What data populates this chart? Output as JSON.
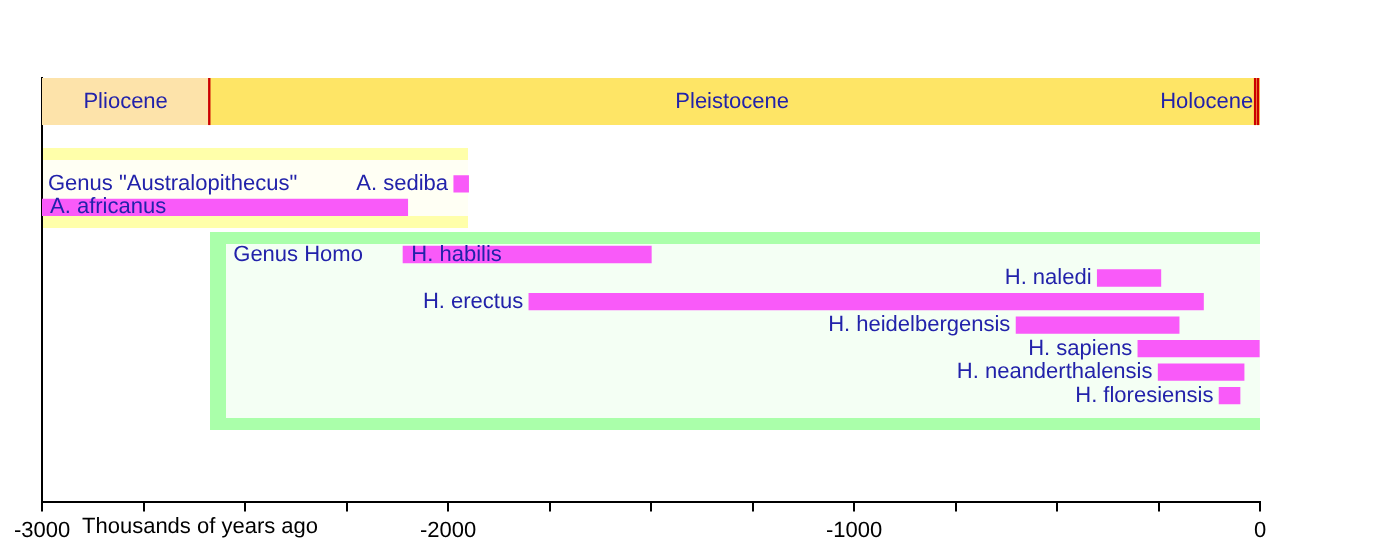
{
  "chart_data": {
    "type": "bar",
    "orientation": "horizontal",
    "xlabel": "Thousands of years ago",
    "categories": [
      null,
      null,
      null,
      null,
      "A. sediba",
      "A. africanus",
      null,
      "H. habilis",
      "H. naledi",
      "H. erectus",
      "H. heidelbergensis",
      "H. sapiens",
      "H. neanderthalensis",
      "H. floresiensis",
      null,
      null,
      null,
      null
    ],
    "series": [
      {
        "color": "#f95af9",
        "values": [
          null,
          null,
          null,
          null,
          35,
          900,
          null,
          null,
          null,
          null,
          null,
          null,
          null,
          null,
          null,
          null,
          null,
          null
        ],
        "base": [
          null,
          null,
          null,
          null,
          -1985,
          -3000,
          null,
          null,
          null,
          null,
          null,
          null,
          null,
          null,
          null,
          null,
          null,
          null
        ]
      },
      {
        "color": "#f95af9",
        "values": [
          null,
          null,
          null,
          null,
          null,
          null,
          null,
          610,
          155,
          1660,
          400,
          300,
          210,
          50,
          null,
          null,
          null,
          null
        ],
        "base": [
          null,
          null,
          null,
          null,
          null,
          null,
          null,
          -2110,
          -400,
          -1800,
          -600,
          -300,
          -250,
          -100,
          null,
          null,
          null,
          null
        ]
      }
    ],
    "xlim": [
      -3000,
      0
    ],
    "xticks": [
      -3000,
      {
        "value": -2750,
        "label": null
      },
      {
        "value": -2500,
        "label": null
      },
      {
        "value": -2250,
        "label": null
      },
      -2000,
      {
        "value": -1750,
        "label": null
      },
      {
        "value": -1500,
        "label": null
      },
      {
        "value": -1250,
        "label": null
      },
      -1000,
      {
        "value": -750,
        "label": null
      },
      {
        "value": -500,
        "label": null
      },
      {
        "value": -250,
        "label": null
      },
      0
    ],
    "bands": [
      {
        "axis": "x",
        "from": -3000,
        "to": -2588,
        "label": "Pliocene",
        "color": "#fde3aa"
      },
      {
        "axis": "x",
        "from": -2588,
        "to": -12,
        "label": "Pleistocene",
        "color": "#fee566"
      },
      {
        "axis": "x",
        "from": -12,
        "to": 0,
        "label": "Holocene",
        "color": "#fee566"
      },
      {
        "axis": "x",
        "from": -3000,
        "to": -1950,
        "label": "Genus \"Australopithecus\"",
        "color": "#ffffaa"
      },
      {
        "axis": "x",
        "from": -2588,
        "to": 0,
        "label": "Genus Homo",
        "color": "#aaffaa"
      }
    ],
    "ref_lines": [
      {
        "axis": "x",
        "value": -2588,
        "color": "#cc0000"
      },
      {
        "axis": "x",
        "value": -12,
        "color": "#cc0000"
      },
      {
        "axis": "x",
        "value": 0,
        "color": "#cc0000"
      }
    ],
    "legend": false
  }
}
